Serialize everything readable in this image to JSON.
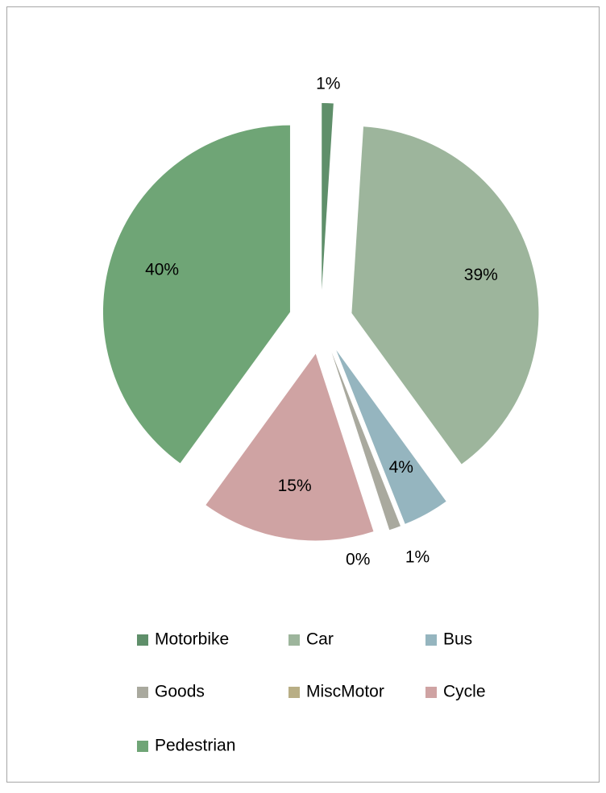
{
  "chart_data": {
    "type": "pie",
    "categories": [
      "Motorbike",
      "Car",
      "Bus",
      "Goods",
      "MiscMotor",
      "Cycle",
      "Pedestrian"
    ],
    "values": [
      1,
      39,
      4,
      1,
      0,
      15,
      40
    ],
    "value_labels": [
      "1%",
      "39%",
      "4%",
      "1%",
      "0%",
      "15%",
      "40%"
    ],
    "colors": [
      "#5f8f6a",
      "#9db59c",
      "#95b5bf",
      "#a9a99e",
      "#b8ae85",
      "#cfa3a3",
      "#6fa576"
    ],
    "exploded": true,
    "legend": "bottom"
  }
}
